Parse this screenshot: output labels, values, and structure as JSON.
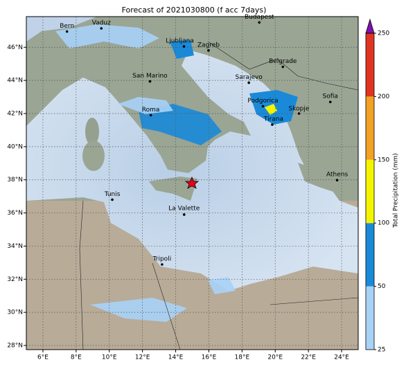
{
  "chart_data": {
    "type": "map",
    "title": "Forecast of 2021030800 (f acc 7days)",
    "xlim": [
      5.0,
      25.0
    ],
    "ylim": [
      27.75,
      47.85
    ],
    "xticks": [
      {
        "value": 6,
        "label": "6°E"
      },
      {
        "value": 8,
        "label": "8°E"
      },
      {
        "value": 10,
        "label": "10°E"
      },
      {
        "value": 12,
        "label": "12°E"
      },
      {
        "value": 14,
        "label": "14°E"
      },
      {
        "value": 16,
        "label": "16°E"
      },
      {
        "value": 18,
        "label": "18°E"
      },
      {
        "value": 20,
        "label": "20°E"
      },
      {
        "value": 22,
        "label": "22°E"
      },
      {
        "value": 24,
        "label": "24°E"
      }
    ],
    "yticks": [
      {
        "value": 28,
        "label": "28°N"
      },
      {
        "value": 30,
        "label": "30°N"
      },
      {
        "value": 32,
        "label": "32°N"
      },
      {
        "value": 34,
        "label": "34°N"
      },
      {
        "value": 36,
        "label": "36°N"
      },
      {
        "value": 38,
        "label": "38°N"
      },
      {
        "value": 40,
        "label": "40°N"
      },
      {
        "value": 42,
        "label": "42°N"
      },
      {
        "value": 44,
        "label": "44°N"
      },
      {
        "value": 46,
        "label": "46°N"
      }
    ],
    "grid": true,
    "cities": [
      "Bern",
      "Vaduz",
      "Budapest",
      "Ljubljana",
      "Zagreb",
      "Belgrade",
      "San Marino",
      "Sarajevo",
      "Podgorica",
      "Sofia",
      "Skopje",
      "Roma",
      "Tirana",
      "Athens",
      "Tunis",
      "La Valette",
      "Tripoli"
    ],
    "colorbar": {
      "label": "Total Precipitation (mm)",
      "levels": [
        25,
        50,
        100,
        150,
        200,
        250
      ],
      "colors": [
        "#a9d2f7",
        "#1a8ad8",
        "#f4f400",
        "#f2a125",
        "#e03422"
      ],
      "extend_color": "#7b12b3"
    }
  }
}
